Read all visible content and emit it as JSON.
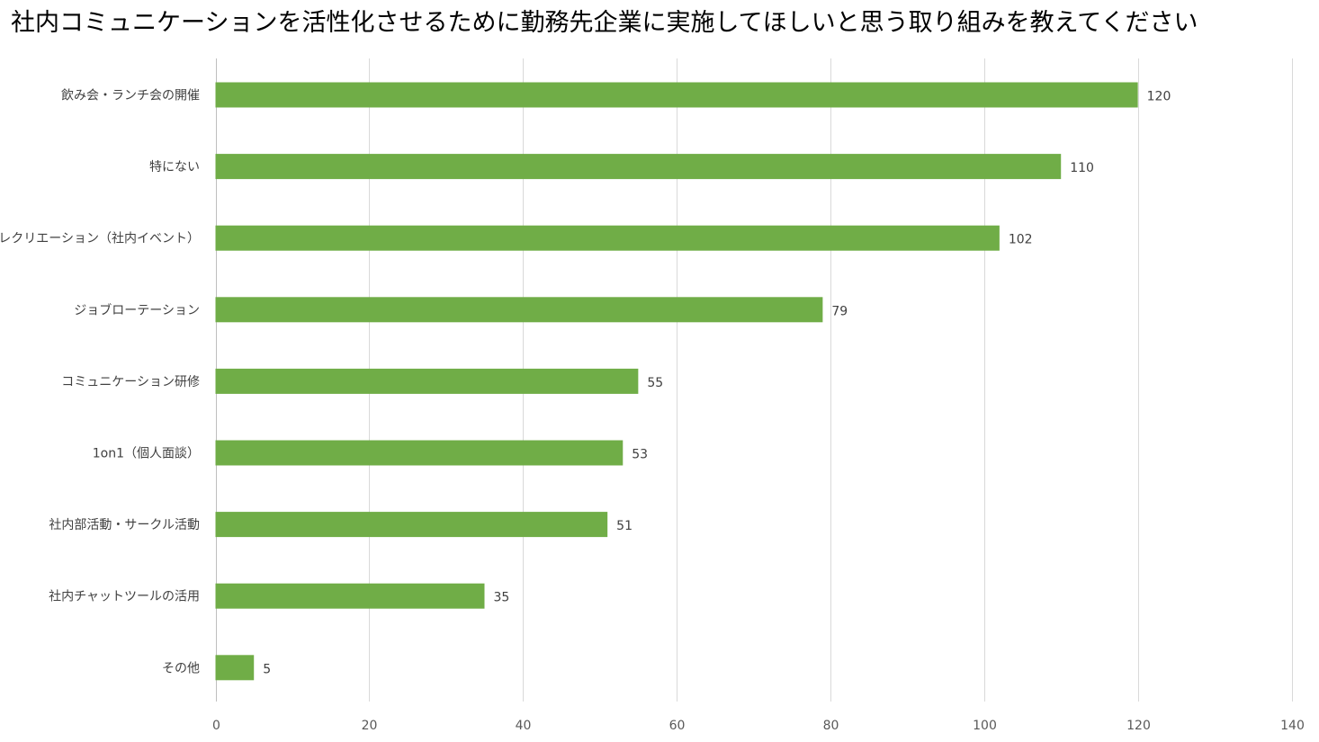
{
  "chart_data": {
    "type": "bar",
    "orientation": "horizontal",
    "title": "社内コミュニケーションを活性化させるために勤務先企業に実施してほしいと思う取り組みを教えてください",
    "categories": [
      "飲み会・ランチ会の開催",
      "特にない",
      "レクリエーション（社内イベント）",
      "ジョブローテーション",
      "コミュニケーション研修",
      "1on1（個人面談）",
      "社内部活動・サークル活動",
      "社内チャットツールの活用",
      "その他"
    ],
    "values": [
      120,
      110,
      102,
      79,
      55,
      53,
      51,
      35,
      5
    ],
    "xlim": [
      0,
      140
    ],
    "xticks": [
      0,
      20,
      40,
      60,
      80,
      100,
      120,
      140
    ],
    "grid": true,
    "legend": "none",
    "bar_color": "#70ad47"
  }
}
